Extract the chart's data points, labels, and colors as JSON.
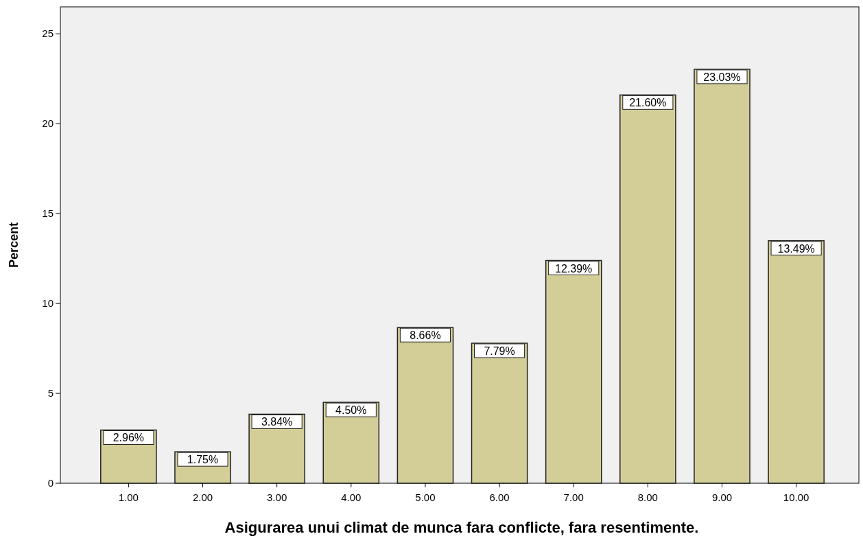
{
  "chart_data": {
    "type": "bar",
    "xlabel": "Asigurarea unui climat de munca fara conflicte, fara resentimente.",
    "ylabel": "Percent",
    "categories": [
      "1.00",
      "2.00",
      "3.00",
      "4.00",
      "5.00",
      "6.00",
      "7.00",
      "8.00",
      "9.00",
      "10.00"
    ],
    "values": [
      2.96,
      1.75,
      3.84,
      4.5,
      8.66,
      7.79,
      12.39,
      21.6,
      23.03,
      13.49
    ],
    "value_labels": [
      "2.96%",
      "1.75%",
      "3.84%",
      "4.50%",
      "8.66%",
      "7.79%",
      "12.39%",
      "21.60%",
      "23.03%",
      "13.49%"
    ],
    "color": "#d3ce98",
    "ylim": [
      0,
      26.5
    ],
    "yticks": [
      0,
      5,
      10,
      15,
      20,
      25
    ],
    "grid": false
  }
}
